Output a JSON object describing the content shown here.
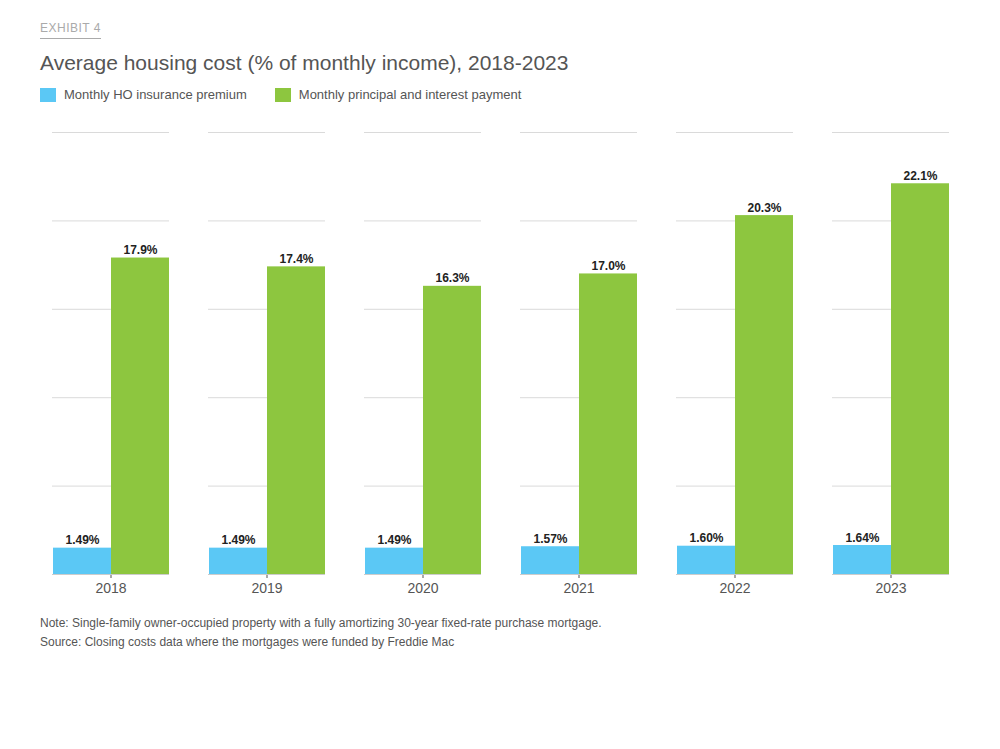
{
  "chart_data": {
    "type": "bar",
    "exhibit_label": "EXHIBIT 4",
    "title": "Average housing cost (% of monthly income), 2018-2023",
    "categories": [
      "2018",
      "2019",
      "2020",
      "2021",
      "2022",
      "2023"
    ],
    "series": [
      {
        "name": "Monthly HO insurance premium",
        "color": "#5bc8f5",
        "values": [
          1.49,
          1.49,
          1.49,
          1.57,
          1.6,
          1.64
        ],
        "value_labels": [
          "1.49%",
          "1.49%",
          "1.49%",
          "1.57%",
          "1.60%",
          "1.64%"
        ]
      },
      {
        "name": "Monthly principal and interest payment",
        "color": "#8dc63f",
        "values": [
          17.9,
          17.4,
          16.3,
          17.0,
          20.3,
          22.1
        ],
        "value_labels": [
          "17.9%",
          "17.4%",
          "16.3%",
          "17.0%",
          "20.3%",
          "22.1%"
        ]
      }
    ],
    "ylim": [
      0,
      25
    ],
    "yticks": [
      0,
      5,
      10,
      15,
      20,
      25
    ],
    "grid": true,
    "tick_labels": "x",
    "legend": "upper left",
    "data_labels": true,
    "notes": [
      "Note: Single-family owner-occupied property with a fully amortizing 30-year fixed-rate purchase mortgage.",
      "Source: Closing costs data where the mortgages were funded by Freddie Mac"
    ]
  }
}
